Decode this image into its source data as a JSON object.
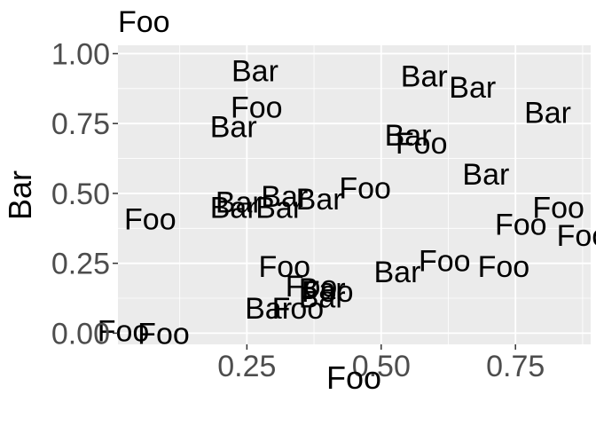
{
  "chart_data": {
    "type": "scatter",
    "title": "Foo",
    "xlabel": "Foo",
    "ylabel": "Bar",
    "xlim": [
      0.01,
      0.89
    ],
    "ylim": [
      -0.04,
      1.03
    ],
    "x_ticks": [
      0.25,
      0.5,
      0.75
    ],
    "x_tick_labels": [
      "0.25",
      "0.50",
      "0.75"
    ],
    "y_ticks": [
      0,
      0.25,
      0.5,
      0.75,
      1
    ],
    "y_tick_labels": [
      "0.00",
      "0.25",
      "0.50",
      "0.75",
      "1.00"
    ],
    "grid": true,
    "legend": "none",
    "panel_background": "#ebebeb",
    "gridline_color": "#ffffff",
    "text_color": "#000000",
    "tick_label_color": "#4d4d4d",
    "points": [
      {
        "x": 0.265,
        "y": 0.94,
        "label": "Bar"
      },
      {
        "x": 0.268,
        "y": 0.81,
        "label": "Foo"
      },
      {
        "x": 0.225,
        "y": 0.74,
        "label": "Bar"
      },
      {
        "x": 0.235,
        "y": 0.47,
        "label": "Bar"
      },
      {
        "x": 0.225,
        "y": 0.45,
        "label": "Bar"
      },
      {
        "x": 0.32,
        "y": 0.49,
        "label": "Bar"
      },
      {
        "x": 0.31,
        "y": 0.45,
        "label": "Bar"
      },
      {
        "x": 0.385,
        "y": 0.48,
        "label": "Bar"
      },
      {
        "x": 0.47,
        "y": 0.52,
        "label": "Foo"
      },
      {
        "x": 0.07,
        "y": 0.41,
        "label": "Foo"
      },
      {
        "x": 0.32,
        "y": 0.24,
        "label": "Foo"
      },
      {
        "x": 0.37,
        "y": 0.17,
        "label": "Foo"
      },
      {
        "x": 0.39,
        "y": 0.16,
        "label": "Bar"
      },
      {
        "x": 0.4,
        "y": 0.15,
        "label": "Foo"
      },
      {
        "x": 0.39,
        "y": 0.13,
        "label": "Bar"
      },
      {
        "x": 0.345,
        "y": 0.09,
        "label": "Foo"
      },
      {
        "x": 0.29,
        "y": 0.09,
        "label": "Bar"
      },
      {
        "x": 0.53,
        "y": 0.22,
        "label": "Bar"
      },
      {
        "x": 0.618,
        "y": 0.26,
        "label": "Foo"
      },
      {
        "x": 0.728,
        "y": 0.24,
        "label": "Foo"
      },
      {
        "x": 0.58,
        "y": 0.92,
        "label": "Bar"
      },
      {
        "x": 0.67,
        "y": 0.88,
        "label": "Bar"
      },
      {
        "x": 0.81,
        "y": 0.79,
        "label": "Bar"
      },
      {
        "x": 0.55,
        "y": 0.71,
        "label": "Bar"
      },
      {
        "x": 0.575,
        "y": 0.68,
        "label": "Foo"
      },
      {
        "x": 0.695,
        "y": 0.57,
        "label": "Bar"
      },
      {
        "x": 0.83,
        "y": 0.45,
        "label": "Foo"
      },
      {
        "x": 0.76,
        "y": 0.39,
        "label": "Foo"
      },
      {
        "x": 0.875,
        "y": 0.35,
        "label": "Foo"
      },
      {
        "x": 0.02,
        "y": 0.01,
        "label": "Foo"
      },
      {
        "x": 0.095,
        "y": 0.0,
        "label": "Foo"
      }
    ]
  }
}
